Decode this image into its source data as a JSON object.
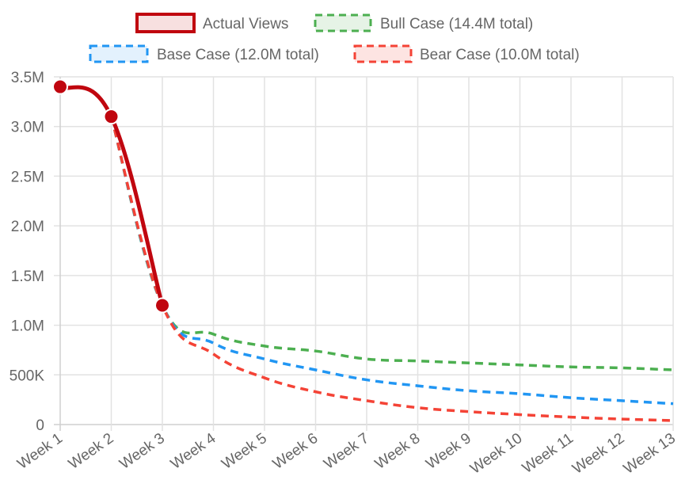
{
  "chart_data": {
    "type": "line",
    "title": "",
    "xlabel": "",
    "ylabel": "",
    "categories": [
      "Week 1",
      "Week 2",
      "Week 3",
      "Week 4",
      "Week 5",
      "Week 6",
      "Week 7",
      "Week 8",
      "Week 9",
      "Week 10",
      "Week 11",
      "Week 12",
      "Week 13"
    ],
    "ylim": [
      0,
      3500000
    ],
    "yticks": [
      {
        "value": 0,
        "label": "0"
      },
      {
        "value": 500000,
        "label": "500K"
      },
      {
        "value": 1000000,
        "label": "1.0M"
      },
      {
        "value": 1500000,
        "label": "1.5M"
      },
      {
        "value": 2000000,
        "label": "2.0M"
      },
      {
        "value": 2500000,
        "label": "2.5M"
      },
      {
        "value": 3000000,
        "label": "3.0M"
      },
      {
        "value": 3500000,
        "label": "3.5M"
      }
    ],
    "grid": true,
    "legend_position": "top",
    "series": [
      {
        "name": "Actual Views",
        "color": "#c0060f",
        "fill": "#f7e0e0",
        "dashed": false,
        "points": true,
        "values": [
          3400000,
          3100000,
          1200000,
          null,
          null,
          null,
          null,
          null,
          null,
          null,
          null,
          null,
          null
        ]
      },
      {
        "name": "Bull Case (14.4M total)",
        "color": "#4caf50",
        "fill": "#e6f3e6",
        "dashed": true,
        "points": false,
        "values": [
          null,
          3100000,
          1200000,
          910000,
          790000,
          740000,
          660000,
          640000,
          620000,
          600000,
          580000,
          570000,
          550000
        ]
      },
      {
        "name": "Base Case (12.0M total)",
        "color": "#2196f3",
        "fill": "#e3f1fd",
        "dashed": true,
        "points": false,
        "values": [
          null,
          3100000,
          1200000,
          820000,
          660000,
          550000,
          450000,
          390000,
          340000,
          310000,
          270000,
          240000,
          210000
        ]
      },
      {
        "name": "Bear Case (10.0M total)",
        "color": "#f44336",
        "fill": "#fde4e2",
        "dashed": true,
        "points": false,
        "values": [
          null,
          3100000,
          1200000,
          710000,
          470000,
          330000,
          240000,
          170000,
          130000,
          100000,
          75000,
          55000,
          40000
        ]
      }
    ]
  }
}
